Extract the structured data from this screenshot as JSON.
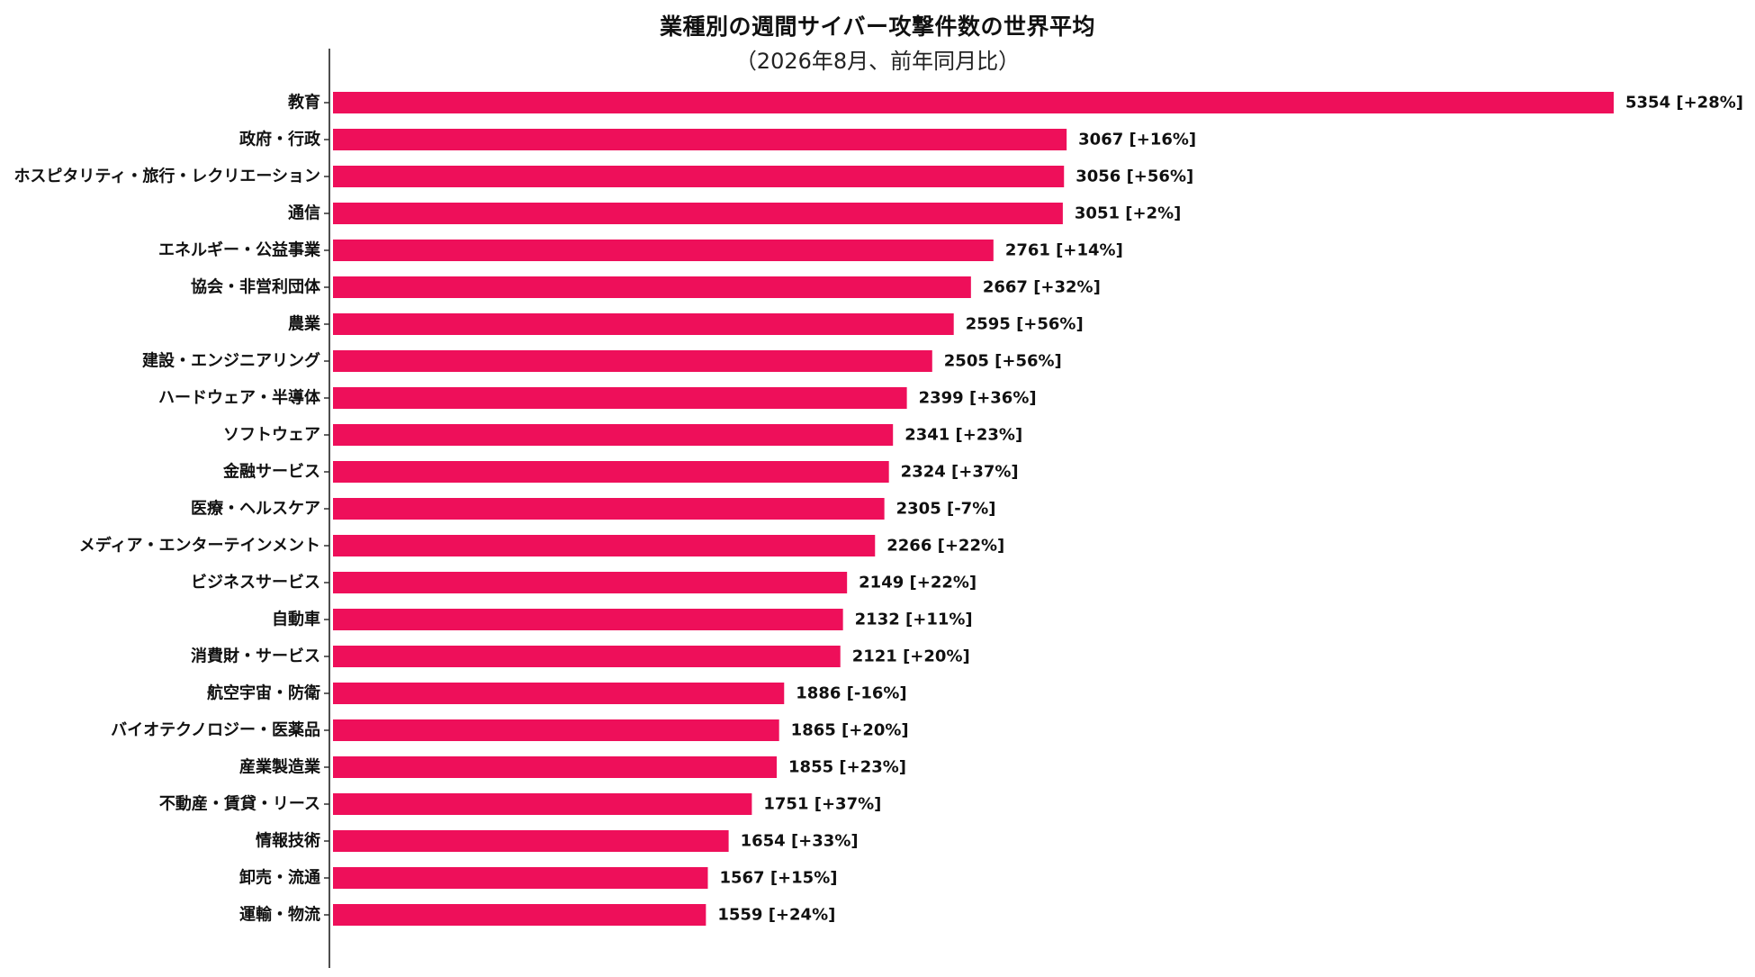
{
  "chart_data": {
    "type": "bar",
    "orientation": "horizontal",
    "title": "業種別の週間サイバー攻撃件数の世界平均",
    "subtitle": "（2026年8月、前年同月比）",
    "xlabel": "",
    "ylabel": "",
    "xlim": [
      0,
      5354
    ],
    "grid": false,
    "bar_color": "#EE0F5A",
    "categories": [
      "教育",
      "政府・行政",
      "ホスピタリティ・旅行・レクリエーション",
      "通信",
      "エネルギー・公益事業",
      "協会・非営利団体",
      "農業",
      "建設・エンジニアリング",
      "ハードウェア・半導体",
      "ソフトウェア",
      "金融サービス",
      "医療・ヘルスケア",
      "メディア・エンターテインメント",
      "ビジネスサービス",
      "自動車",
      "消費財・サービス",
      "航空宇宙・防衛",
      "バイオテクノロジー・医薬品",
      "産業製造業",
      "不動産・賃貸・リース",
      "情報技術",
      "卸売・流通",
      "運輸・物流"
    ],
    "values": [
      5354,
      3067,
      3056,
      3051,
      2761,
      2667,
      2595,
      2505,
      2399,
      2341,
      2324,
      2305,
      2266,
      2149,
      2132,
      2121,
      1886,
      1865,
      1855,
      1751,
      1654,
      1567,
      1559
    ],
    "labels": [
      "5354 [+28%]",
      "3067 [+16%]",
      "3056 [+56%]",
      "3051 [+2%]",
      "2761 [+14%]",
      "2667 [+32%]",
      "2595 [+56%]",
      "2505 [+56%]",
      "2399 [+36%]",
      "2341 [+23%]",
      "2324 [+37%]",
      "2305 [-7%]",
      "2266 [+22%]",
      "2149 [+22%]",
      "2132 [+11%]",
      "2121 [+20%]",
      "1886 [-16%]",
      "1865 [+20%]",
      "1855 [+23%]",
      "1751 [+37%]",
      "1654 [+33%]",
      "1567 [+15%]",
      "1559 [+24%]"
    ]
  }
}
